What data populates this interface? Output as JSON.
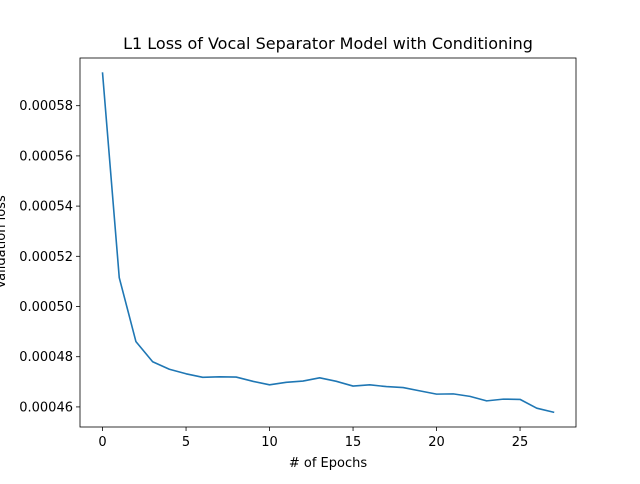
{
  "chart_data": {
    "type": "line",
    "title": "L1 Loss of Vocal Separator Model with Conditioning",
    "xlabel": "# of Epochs",
    "ylabel": "Validation loss",
    "xlim": [
      -1.35,
      28.35
    ],
    "ylim": [
      0.000452,
      0.000599
    ],
    "xticks": [
      0,
      5,
      10,
      15,
      20,
      25
    ],
    "yticks": [
      0.00046,
      0.00048,
      0.0005,
      0.00052,
      0.00054,
      0.00056,
      0.00058
    ],
    "ytick_labels": [
      "0.00046",
      "0.00048",
      "0.00050",
      "0.00052",
      "0.00054",
      "0.00056",
      "0.00058"
    ],
    "grid": false,
    "legend": "none",
    "series": [
      {
        "color": "#1f77b4",
        "x": [
          0,
          1,
          2,
          3,
          4,
          5,
          6,
          7,
          8,
          9,
          10,
          11,
          12,
          13,
          14,
          15,
          16,
          17,
          18,
          19,
          20,
          21,
          22,
          23,
          24,
          25,
          26,
          27
        ],
        "y": [
          0.000593,
          0.0005115,
          0.000486,
          0.000478,
          0.000475,
          0.0004732,
          0.0004718,
          0.000472,
          0.0004719,
          0.0004702,
          0.0004688,
          0.0004698,
          0.0004703,
          0.0004716,
          0.0004702,
          0.0004683,
          0.0004688,
          0.0004681,
          0.0004677,
          0.0004664,
          0.0004651,
          0.0004652,
          0.0004642,
          0.0004624,
          0.0004631,
          0.000463,
          0.0004595,
          0.0004579
        ]
      }
    ]
  }
}
